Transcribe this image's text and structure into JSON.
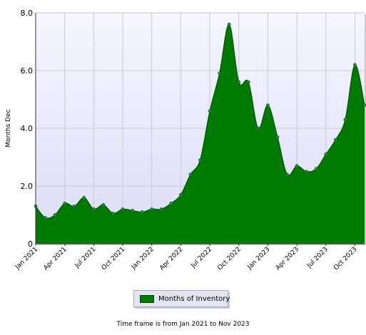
{
  "chart_data": {
    "type": "area",
    "ylabel": "Months Dec",
    "ylim": [
      0,
      8
    ],
    "yticks": [
      0,
      2,
      4,
      6,
      8
    ],
    "ytick_labels": [
      "0",
      "2.0",
      "4.0",
      "6.0",
      "8.0"
    ],
    "xtick_labels": [
      "Jan 2021",
      "Apr 2021",
      "Jul 2021",
      "Oct 2021",
      "Jan 2022",
      "Apr 2022",
      "Jul 2022",
      "Oct 2022",
      "Jan 2023",
      "Apr 2023",
      "Jul 2023",
      "Oct 2023"
    ],
    "grid": true,
    "legend_position": "bottom",
    "colors": {
      "fill": "#007a00",
      "line": "#005500",
      "marker": "#2f7d4f",
      "plot_bg_top": "#f6f6ff",
      "plot_bg_bottom": "#dcdcf6",
      "grid": "#c8c8d8"
    },
    "series": [
      {
        "name": "Months of Inventory",
        "x": [
          "Jan 2021",
          "Feb 2021",
          "Mar 2021",
          "Apr 2021",
          "May 2021",
          "Jun 2021",
          "Jul 2021",
          "Aug 2021",
          "Sep 2021",
          "Oct 2021",
          "Nov 2021",
          "Dec 2021",
          "Jan 2022",
          "Feb 2022",
          "Mar 2022",
          "Apr 2022",
          "May 2022",
          "Jun 2022",
          "Jul 2022",
          "Aug 2022",
          "Sep 2022",
          "Oct 2022",
          "Nov 2022",
          "Dec 2022",
          "Jan 2023",
          "Feb 2023",
          "Mar 2023",
          "Apr 2023",
          "May 2023",
          "Jun 2023",
          "Jul 2023",
          "Aug 2023",
          "Sep 2023",
          "Oct 2023",
          "Nov 2023"
        ],
        "values": [
          1.3,
          0.9,
          1.0,
          1.4,
          1.3,
          1.6,
          1.2,
          1.35,
          1.05,
          1.2,
          1.15,
          1.1,
          1.2,
          1.2,
          1.4,
          1.7,
          2.4,
          2.9,
          4.6,
          5.9,
          7.6,
          5.6,
          5.6,
          4.0,
          4.8,
          3.7,
          2.4,
          2.7,
          2.5,
          2.6,
          3.1,
          3.6,
          4.3,
          6.2,
          4.8
        ]
      }
    ]
  },
  "legend": {
    "label": "Months of Inventory"
  },
  "footer": {
    "caption": "Time frame is from Jan 2021 to Nov 2023"
  }
}
